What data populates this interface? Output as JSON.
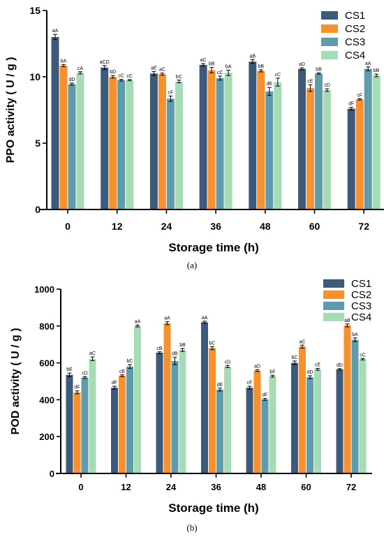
{
  "colors": {
    "CS1": "#3d5a7a",
    "CS2": "#f7902d",
    "CS3": "#5f9bab",
    "CS4": "#a6dcb5",
    "axis": "#000000",
    "errorbar": "#000000"
  },
  "chart_data": [
    {
      "panel_label": "(a)",
      "type": "bar",
      "xlabel": "Storage time (h)",
      "ylabel": "PPO activity ( U / g )",
      "ylim": [
        0,
        15
      ],
      "yticks": [
        0,
        5,
        10,
        15
      ],
      "categories": [
        "0",
        "12",
        "24",
        "36",
        "48",
        "60",
        "72"
      ],
      "legend": {
        "placement": "top-right",
        "entries": [
          "CS1",
          "CS2",
          "CS3",
          "CS4"
        ]
      },
      "series": [
        {
          "name": "CS1",
          "values": [
            13.0,
            10.7,
            10.25,
            10.9,
            11.15,
            10.6,
            7.6
          ],
          "errors": [
            0.2,
            0.15,
            0.15,
            0.1,
            0.15,
            0.08,
            0.1
          ],
          "labels": [
            "aA",
            "aCD",
            "aE",
            "aC",
            "aB",
            "aD",
            "dF"
          ]
        },
        {
          "name": "CS2",
          "values": [
            10.85,
            10.0,
            10.2,
            10.5,
            10.45,
            9.15,
            8.3
          ],
          "errors": [
            0.08,
            0.1,
            0.08,
            0.2,
            0.08,
            0.25,
            0.05
          ],
          "labels": [
            "bA",
            "bD",
            "aC",
            "bB",
            "bB",
            "cE",
            "cF"
          ]
        },
        {
          "name": "CS3",
          "values": [
            9.45,
            9.75,
            8.35,
            9.9,
            8.9,
            10.25,
            10.6
          ],
          "errors": [
            0.08,
            0.06,
            0.2,
            0.15,
            0.3,
            0.05,
            0.15
          ],
          "labels": [
            "dD",
            "cC",
            "cF",
            "cC",
            "dE",
            "bB",
            "aA"
          ]
        },
        {
          "name": "CS4",
          "values": [
            10.3,
            9.75,
            9.65,
            10.3,
            9.6,
            9.0,
            10.1
          ],
          "errors": [
            0.08,
            0.05,
            0.1,
            0.2,
            0.3,
            0.1,
            0.1
          ],
          "labels": [
            "cA",
            "cC",
            "bC",
            "bA",
            "cC",
            "cD",
            "bB"
          ]
        }
      ]
    },
    {
      "panel_label": "(b)",
      "type": "bar",
      "xlabel": "Storage time (h)",
      "ylabel": "POD activity ( U / g )",
      "ylim": [
        0,
        1000
      ],
      "yticks": [
        0,
        200,
        400,
        600,
        800,
        1000
      ],
      "categories": [
        "0",
        "12",
        "24",
        "36",
        "48",
        "60",
        "72"
      ],
      "legend": {
        "placement": "top-right",
        "entries": [
          "CS1",
          "CS2",
          "CS3",
          "CS4"
        ]
      },
      "series": [
        {
          "name": "CS1",
          "values": [
            535,
            465,
            655,
            820,
            465,
            600,
            565
          ],
          "errors": [
            10,
            8,
            5,
            6,
            8,
            10,
            4
          ],
          "labels": [
            "bE",
            "dF",
            "cB",
            "aA",
            "cF",
            "bC",
            "dD"
          ]
        },
        {
          "name": "CS2",
          "values": [
            440,
            530,
            815,
            680,
            558,
            688,
            803
          ],
          "errors": [
            8,
            5,
            8,
            8,
            5,
            8,
            8
          ],
          "labels": [
            "dF",
            "cE",
            "aA",
            "bC",
            "aD",
            "aC",
            "aB"
          ]
        },
        {
          "name": "CS3",
          "values": [
            520,
            580,
            610,
            455,
            402,
            522,
            725
          ],
          "errors": [
            5,
            10,
            20,
            8,
            5,
            8,
            10
          ],
          "labels": [
            "cD",
            "bC",
            "dB",
            "dE",
            "dF",
            "dD",
            "bA"
          ]
        },
        {
          "name": "CS4",
          "values": [
            622,
            800,
            670,
            580,
            528,
            565,
            620
          ],
          "errors": [
            10,
            5,
            8,
            6,
            5,
            5,
            4
          ],
          "labels": [
            "aC",
            "aA",
            "bB",
            "cD",
            "bF",
            "cE",
            "cC"
          ]
        }
      ]
    }
  ]
}
